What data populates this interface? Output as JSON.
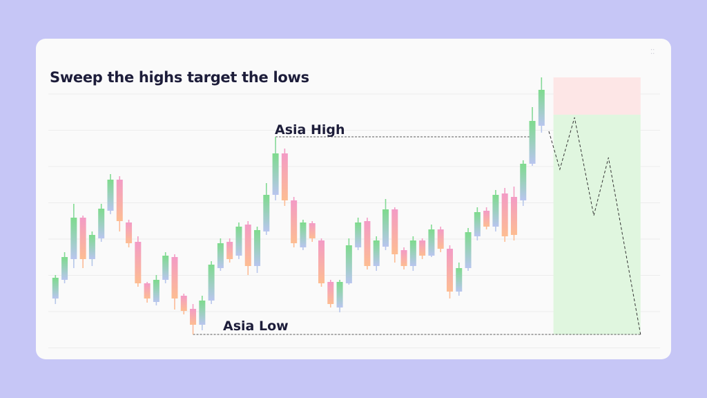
{
  "chart_data": {
    "type": "candlestick",
    "title": "Sweep the highs target the lows",
    "open": [
      144,
      171,
      201,
      261,
      201,
      231,
      271,
      316,
      254,
      226,
      166,
      139,
      171,
      204,
      148,
      129,
      106,
      141,
      188,
      226,
      206,
      251,
      191,
      241,
      294,
      354,
      286,
      218,
      253,
      228,
      168,
      131,
      166,
      218,
      256,
      191,
      219,
      273,
      214,
      191,
      228,
      206,
      244,
      216,
      154,
      188,
      234,
      271,
      248,
      296,
      291,
      286,
      339,
      394
    ],
    "high": [
      178,
      211,
      281,
      264,
      241,
      281,
      324,
      321,
      258,
      234,
      168,
      178,
      211,
      208,
      151,
      136,
      148,
      198,
      231,
      231,
      254,
      256,
      248,
      311,
      378,
      361,
      291,
      258,
      256,
      231,
      171,
      171,
      231,
      261,
      261,
      234,
      288,
      276,
      218,
      234,
      231,
      251,
      248,
      221,
      196,
      246,
      276,
      276,
      301,
      304,
      306,
      344,
      421,
      464
    ],
    "low": [
      136,
      166,
      188,
      188,
      191,
      226,
      266,
      241,
      218,
      161,
      138,
      134,
      166,
      128,
      121,
      92,
      98,
      136,
      184,
      196,
      201,
      178,
      181,
      236,
      286,
      278,
      218,
      214,
      226,
      161,
      131,
      124,
      164,
      214,
      186,
      184,
      214,
      196,
      186,
      184,
      201,
      204,
      211,
      144,
      148,
      184,
      228,
      244,
      241,
      226,
      228,
      278,
      336,
      384
    ],
    "close": [
      174,
      204,
      261,
      201,
      236,
      274,
      316,
      256,
      224,
      166,
      144,
      171,
      206,
      144,
      126,
      106,
      141,
      193,
      224,
      201,
      248,
      191,
      243,
      294,
      354,
      286,
      224,
      254,
      231,
      166,
      136,
      168,
      221,
      254,
      191,
      228,
      273,
      208,
      191,
      228,
      206,
      244,
      216,
      154,
      188,
      240,
      269,
      248,
      294,
      234,
      236,
      339,
      401,
      446
    ],
    "up_colors": [
      "#7edb8d",
      "#b9c5ef"
    ],
    "down_colors": [
      "#f39bc6",
      "#fdbd92"
    ],
    "xlim": [
      -1,
      66
    ],
    "ylim": [
      70,
      470
    ],
    "annotations": {
      "high_label": "Asia High",
      "low_label": "Asia Low"
    },
    "zone": {
      "x": [
        54.3,
        63.8
      ],
      "stop": 464,
      "entry": 410,
      "stop_color": "#fde6e6",
      "target_color": "#e0f6df"
    },
    "projection": {
      "x": [
        53.8,
        55,
        56.6,
        58.7,
        60.3,
        63.8
      ],
      "values": [
        386,
        331,
        406,
        264,
        348,
        92
      ]
    }
  }
}
